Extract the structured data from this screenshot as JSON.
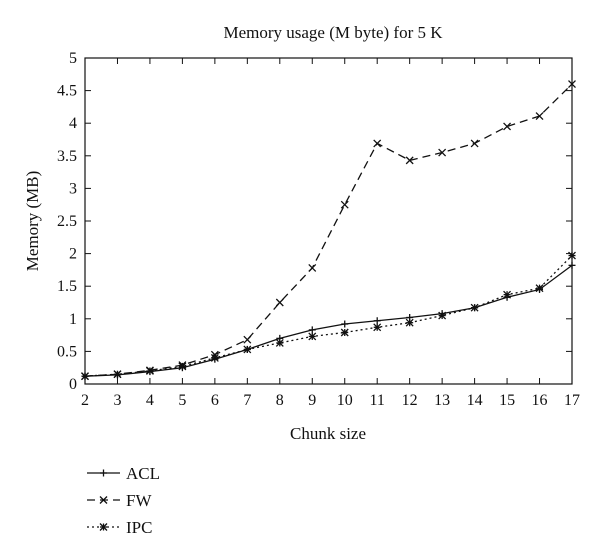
{
  "chart_data": {
    "type": "line",
    "title": "Memory usage (M byte) for 5 K",
    "xlabel": "Chunk size",
    "ylabel": "Memory (MB)",
    "x": [
      2,
      3,
      4,
      5,
      6,
      7,
      8,
      9,
      10,
      11,
      12,
      13,
      14,
      15,
      16,
      17
    ],
    "xlim": [
      2,
      17
    ],
    "ylim": [
      0,
      5
    ],
    "x_ticks": [
      "2",
      "3",
      "4",
      "5",
      "6",
      "7",
      "8",
      "9",
      "10",
      "11",
      "12",
      "13",
      "14",
      "15",
      "16",
      "17"
    ],
    "y_ticks": [
      "0",
      "0.5",
      "1",
      "1.5",
      "2",
      "2.5",
      "3",
      "3.5",
      "4",
      "4.5",
      "5"
    ],
    "grid": false,
    "legend_position": "bottom-left",
    "series": [
      {
        "name": "ACL",
        "line_style": "solid",
        "marker": "plus",
        "values": [
          0.12,
          0.14,
          0.19,
          0.25,
          0.38,
          0.53,
          0.7,
          0.83,
          0.92,
          0.97,
          1.02,
          1.08,
          1.17,
          1.33,
          1.45,
          1.82
        ]
      },
      {
        "name": "FW",
        "line_style": "dashed",
        "marker": "x",
        "values": [
          0.12,
          0.15,
          0.21,
          0.29,
          0.45,
          0.68,
          1.25,
          1.78,
          2.75,
          3.69,
          3.43,
          3.55,
          3.69,
          3.95,
          4.11,
          4.6
        ]
      },
      {
        "name": "IPC",
        "line_style": "dotted",
        "marker": "star",
        "values": [
          0.12,
          0.15,
          0.2,
          0.27,
          0.4,
          0.53,
          0.63,
          0.73,
          0.79,
          0.87,
          0.94,
          1.05,
          1.17,
          1.37,
          1.47,
          1.97
        ]
      }
    ]
  }
}
